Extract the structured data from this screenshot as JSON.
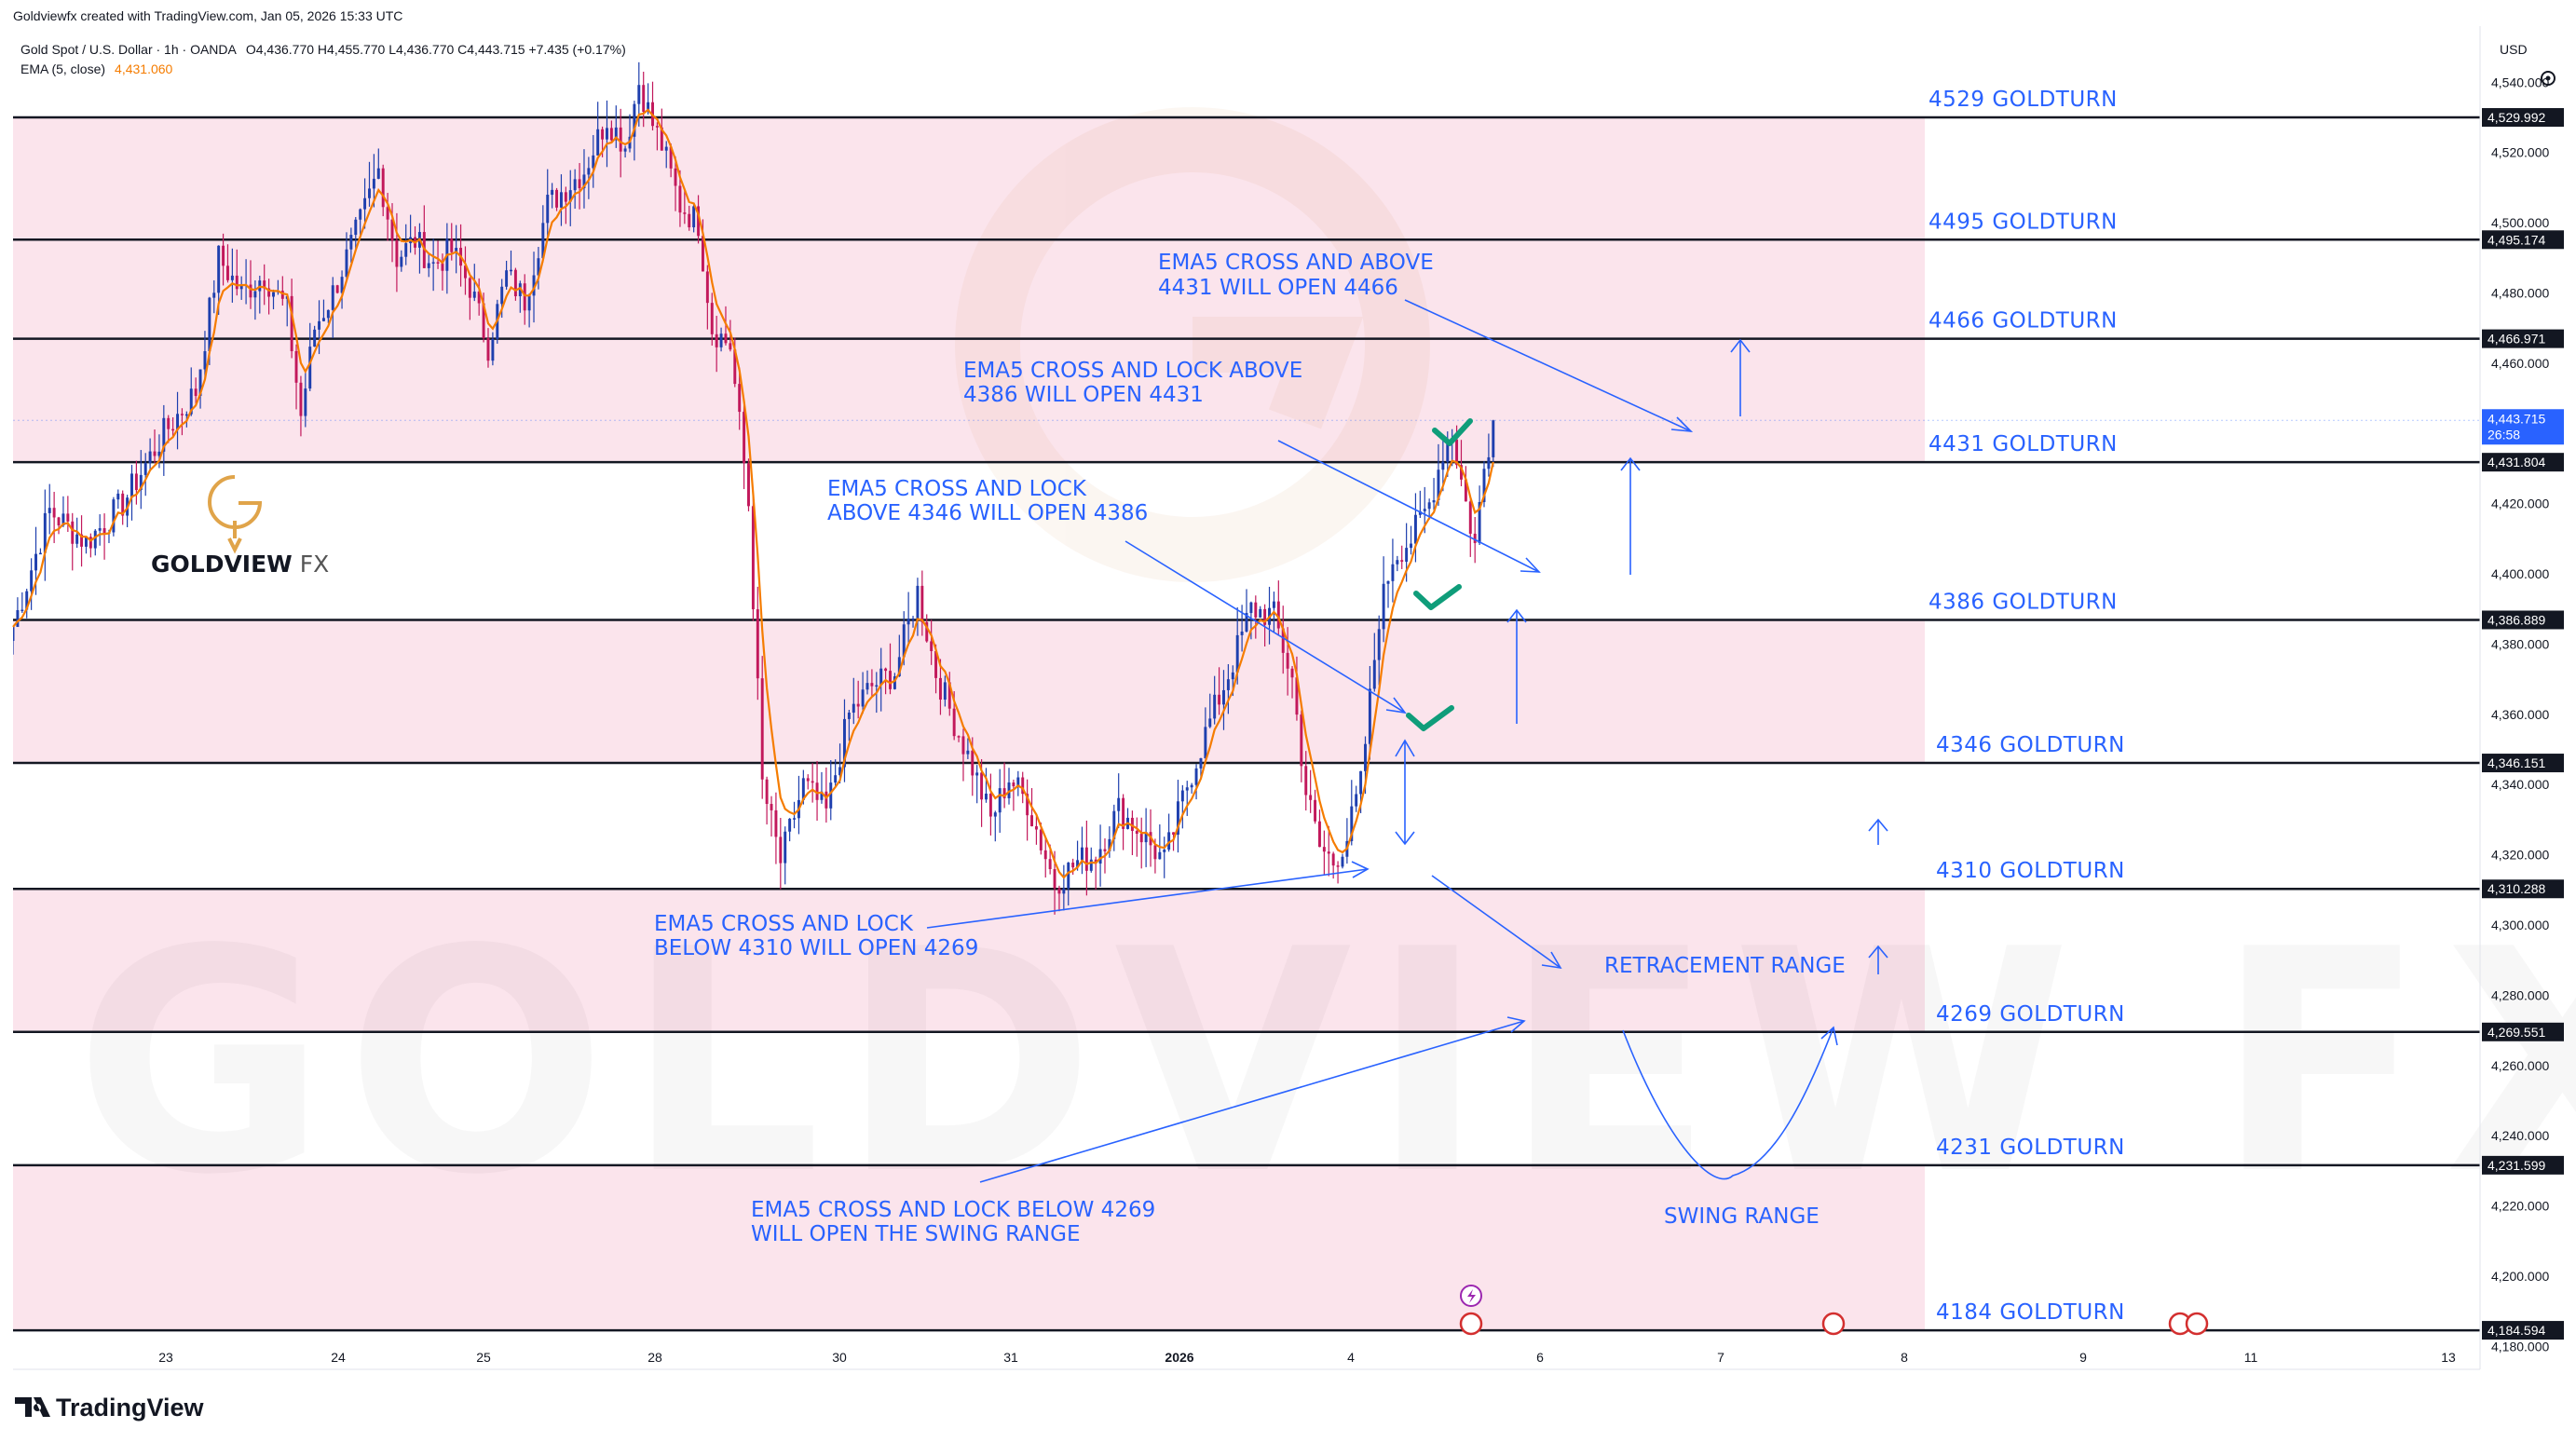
{
  "header": {
    "created_line": "Goldviewfx created with TradingView.com, Jan 05, 2026 15:33 UTC",
    "symbol_line": "Gold Spot / U.S. Dollar · 1h · OANDA",
    "ohlc": "O4,436.770  H4,455.770  L4,436.770  C4,443.715  +7.435 (+0.17%)",
    "ema_label": "EMA (5, close)",
    "ema_value": "4,431.060"
  },
  "branding": {
    "logo_text": "GOLDVIEW",
    "logo_suffix": "FX",
    "watermark": "GOLDVIEW FX",
    "footer": "TradingView"
  },
  "colors": {
    "zone_fill": "#fbe4ec",
    "annotation": "#2962ff",
    "up_candle": "#1e3fae",
    "down_candle": "#c2185b",
    "ema_line": "#f57c00",
    "check": "#0f9d7a",
    "logo": "#e0a44a"
  },
  "chart_data": {
    "type": "candlestick",
    "currency": "USD",
    "y_ticks": [
      "4,540.000",
      "4,520.000",
      "4,500.000",
      "4,480.000",
      "4,460.000",
      "4,420.000",
      "4,400.000",
      "4,380.000",
      "4,360.000",
      "4,340.000",
      "4,320.000",
      "4,300.000",
      "4,280.000",
      "4,260.000",
      "4,240.000",
      "4,220.000",
      "4,200.000",
      "4,180.000"
    ],
    "x_ticks": [
      {
        "label": "23",
        "day_index": 0
      },
      {
        "label": "24",
        "day_index": 1
      },
      {
        "label": "25",
        "day_index": 2
      },
      {
        "label": "28",
        "day_index": 3
      },
      {
        "label": "30",
        "day_index": 5
      },
      {
        "label": "31",
        "day_index": 6
      },
      {
        "label": "2026",
        "day_index": 7
      },
      {
        "label": "4",
        "day_index": 8
      },
      {
        "label": "6",
        "day_index": 9
      },
      {
        "label": "7",
        "day_index": 10
      },
      {
        "label": "8",
        "day_index": 11
      },
      {
        "label": "9",
        "day_index": 12
      },
      {
        "label": "11",
        "day_index": 13
      },
      {
        "label": "13",
        "day_index": 14
      }
    ],
    "price_badges": [
      {
        "value": 4529.992,
        "text": "4,529.992"
      },
      {
        "value": 4495.174,
        "text": "4,495.174"
      },
      {
        "value": 4466.971,
        "text": "4,466.971"
      },
      {
        "value": 4443.715,
        "text": "4,443.715",
        "extra": "26:58",
        "current": true
      },
      {
        "value": 4431.804,
        "text": "4,431.804"
      },
      {
        "value": 4386.889,
        "text": "4,386.889"
      },
      {
        "value": 4346.151,
        "text": "4,346.151"
      },
      {
        "value": 4310.288,
        "text": "4,310.288"
      },
      {
        "value": 4269.551,
        "text": "4,269.551"
      },
      {
        "value": 4231.599,
        "text": "4,231.599"
      },
      {
        "value": 4184.594,
        "text": "4,184.594"
      }
    ],
    "levels": [
      {
        "value": 4529.992,
        "label": "4529 GOLDTURN"
      },
      {
        "value": 4495.174,
        "label": "4495 GOLDTURN"
      },
      {
        "value": 4466.971,
        "label": "4466 GOLDTURN"
      },
      {
        "value": 4431.804,
        "label": "4431 GOLDTURN"
      },
      {
        "value": 4386.889,
        "label": "4386 GOLDTURN"
      },
      {
        "value": 4346.151,
        "label": "4346 GOLDTURN"
      },
      {
        "value": 4310.288,
        "label": "4310 GOLDTURN"
      },
      {
        "value": 4269.551,
        "label": "4269 GOLDTURN"
      },
      {
        "value": 4231.599,
        "label": "4231 GOLDTURN"
      },
      {
        "value": 4184.594,
        "label": "4184 GOLDTURN"
      }
    ],
    "zones": [
      {
        "from": 4431.804,
        "to": 4529.992
      },
      {
        "from": 4346.151,
        "to": 4386.889
      },
      {
        "from": 4269.551,
        "to": 4310.288
      },
      {
        "from": 4184.594,
        "to": 4231.599
      }
    ],
    "annotations": [
      {
        "lines": [
          "EMA5 CROSS AND ABOVE",
          "4431 WILL OPEN 4466"
        ]
      },
      {
        "lines": [
          "EMA5 CROSS AND LOCK ABOVE",
          "4386 WILL OPEN 4431"
        ]
      },
      {
        "lines": [
          "EMA5 CROSS AND LOCK",
          "ABOVE 4346 WILL OPEN 4386"
        ]
      },
      {
        "lines": [
          "EMA5 CROSS AND LOCK",
          "BELOW 4310 WILL OPEN 4269"
        ]
      },
      {
        "lines": [
          "EMA5 CROSS AND LOCK BELOW 4269",
          "WILL OPEN THE SWING RANGE"
        ]
      },
      {
        "lines": [
          "RETRACEMENT RANGE"
        ]
      },
      {
        "lines": [
          "SWING RANGE"
        ]
      }
    ],
    "candle_path": [
      [
        0,
        4385
      ],
      [
        8,
        4418
      ],
      [
        16,
        4409
      ],
      [
        24,
        4420
      ],
      [
        33,
        4440
      ],
      [
        40,
        4452
      ],
      [
        45,
        4490
      ],
      [
        50,
        4480
      ],
      [
        55,
        4485
      ],
      [
        60,
        4475
      ],
      [
        63,
        4445
      ],
      [
        66,
        4470
      ],
      [
        70,
        4480
      ],
      [
        76,
        4500
      ],
      [
        80,
        4515
      ],
      [
        84,
        4490
      ],
      [
        88,
        4495
      ],
      [
        92,
        4488
      ],
      [
        96,
        4492
      ],
      [
        100,
        4482
      ],
      [
        104,
        4465
      ],
      [
        108,
        4485
      ],
      [
        112,
        4478
      ],
      [
        117,
        4505
      ],
      [
        121,
        4510
      ],
      [
        125,
        4515
      ],
      [
        130,
        4530
      ],
      [
        134,
        4522
      ],
      [
        137,
        4540
      ],
      [
        140,
        4528
      ],
      [
        142,
        4522
      ],
      [
        146,
        4505
      ],
      [
        150,
        4500
      ],
      [
        153,
        4470
      ],
      [
        157,
        4465
      ],
      [
        161,
        4420
      ],
      [
        164,
        4340
      ],
      [
        168,
        4318
      ],
      [
        173,
        4340
      ],
      [
        178,
        4332
      ],
      [
        183,
        4360
      ],
      [
        188,
        4368
      ],
      [
        193,
        4372
      ],
      [
        198,
        4395
      ],
      [
        202,
        4372
      ],
      [
        206,
        4358
      ],
      [
        210,
        4345
      ],
      [
        214,
        4330
      ],
      [
        218,
        4342
      ],
      [
        222,
        4335
      ],
      [
        228,
        4312
      ],
      [
        233,
        4318
      ],
      [
        237,
        4320
      ],
      [
        242,
        4333
      ],
      [
        247,
        4326
      ],
      [
        252,
        4318
      ],
      [
        257,
        4340
      ],
      [
        262,
        4358
      ],
      [
        267,
        4375
      ],
      [
        271,
        4390
      ],
      [
        276,
        4388
      ],
      [
        280,
        4370
      ],
      [
        283,
        4338
      ],
      [
        286,
        4322
      ],
      [
        289,
        4318
      ],
      [
        292,
        4325
      ],
      [
        295,
        4340
      ],
      [
        299,
        4388
      ],
      [
        302,
        4405
      ],
      [
        306,
        4410
      ],
      [
        310,
        4420
      ],
      [
        313,
        4435
      ],
      [
        315,
        4440
      ],
      [
        318,
        4420
      ],
      [
        320,
        4408
      ],
      [
        322,
        4430
      ],
      [
        324,
        4443.715
      ]
    ],
    "x_domain": [
      0,
      540
    ],
    "y_domain": [
      4174,
      4556
    ]
  }
}
